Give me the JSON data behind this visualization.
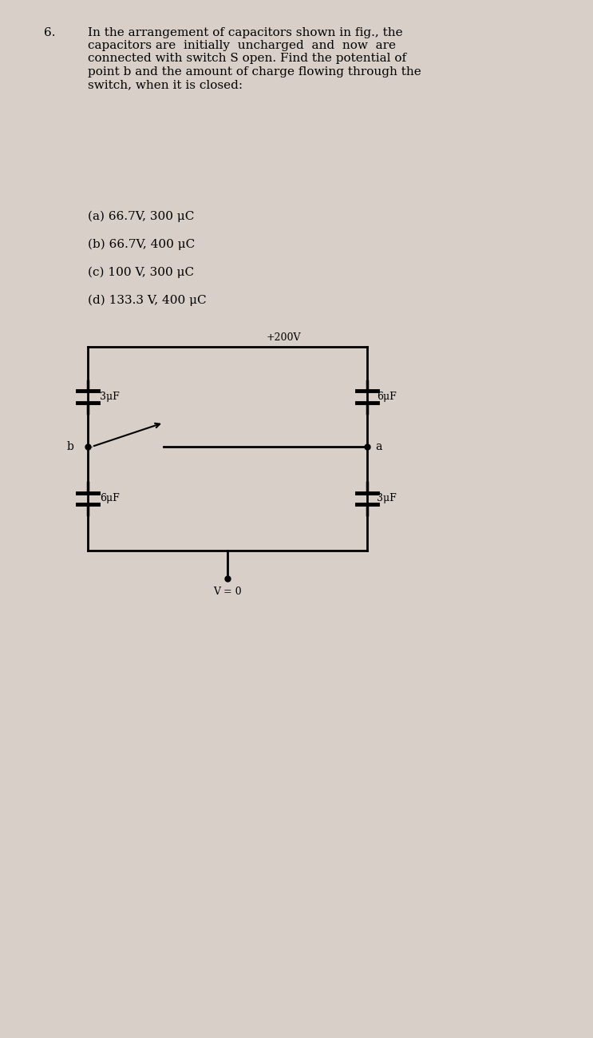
{
  "bg_color": "#d8d0c8",
  "title_number": "6.",
  "question_text": "In the arrangement of capacitors shown in fig., the\ncapacitors are  initially  uncharged  and  now  are\nconnected with switch S open. Find the potential of\npoint b and the amount of charge flowing through the\nswitch, when it is closed:",
  "options": [
    "(a) 66.7V, 300 μC",
    "(b) 66.7V, 400 μC",
    "(c) 100 V, 300 μC +200V",
    "(d) 133.3 V, 400 μC"
  ],
  "voltage_label": "+200V",
  "v_zero_label": "V = 0",
  "node_a_label": "a",
  "node_b_label": "b",
  "cap_top_left": "3μF",
  "cap_top_right": "6μF",
  "cap_bot_left": "6μF",
  "cap_bot_right": "3μF",
  "line_color": "#000000",
  "text_color": "#000000",
  "font_size_question": 11,
  "font_size_options": 11,
  "font_size_labels": 10
}
